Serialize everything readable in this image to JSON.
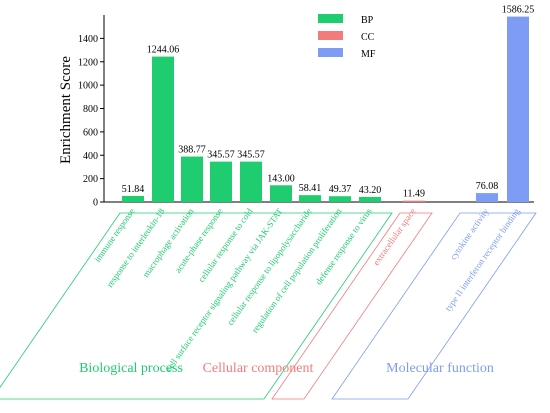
{
  "chart_data": {
    "type": "bar",
    "ylabel": "Enrichment Score",
    "ylim": [
      0,
      1600
    ],
    "yticks": [
      0,
      200,
      400,
      600,
      800,
      1000,
      1200,
      1400
    ],
    "grid": false,
    "legend_position": "top-right",
    "series": [
      {
        "name": "BP",
        "color": "#20cc70",
        "group_label": "Biological process",
        "categories": [
          "immune response",
          "response to interleukin-18",
          "macrophage activation",
          "acute-phase response",
          "cellular response to cold",
          "cell surface receptor signaling pathway via JAK-STAT",
          "cellular response to lipopolysaccharide",
          "regulation of cell population proliferation",
          "defense response to virus"
        ],
        "values": [
          51.84,
          1244.06,
          388.77,
          345.57,
          345.57,
          143.0,
          58.41,
          49.37,
          43.2
        ],
        "value_labels": [
          "51.84",
          "1244.06",
          "388.77",
          "345.57",
          "345.57",
          "143.00",
          "58.41",
          "49.37",
          "43.20"
        ]
      },
      {
        "name": "CC",
        "color": "#f47b7b",
        "group_label": "Cellular component",
        "categories": [
          "extracellular space"
        ],
        "values": [
          11.49
        ],
        "value_labels": [
          "11.49"
        ]
      },
      {
        "name": "MF",
        "color": "#7e9cf4",
        "group_label": "Molecular function",
        "categories": [
          "cytokine activity",
          "type II interferon receptor binding"
        ],
        "values": [
          76.08,
          1586.25
        ],
        "value_labels": [
          "76.08",
          "1586.25"
        ]
      }
    ]
  }
}
